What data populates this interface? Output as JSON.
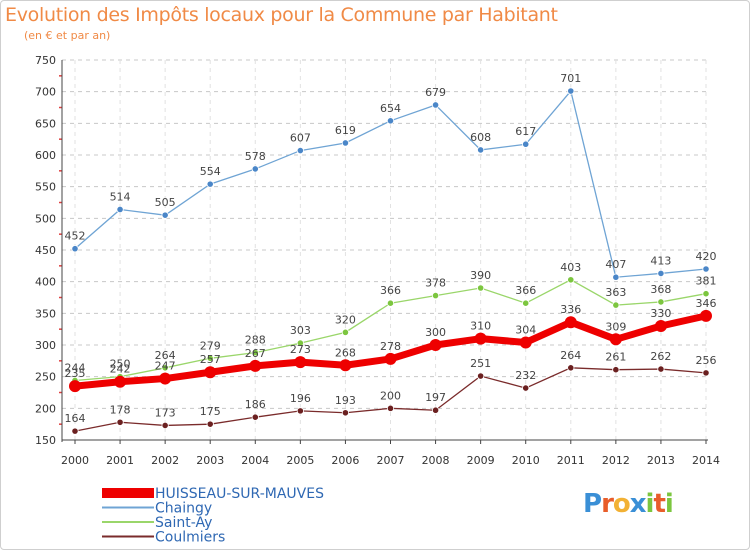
{
  "title": "Evolution des Impôts locaux pour la Commune par Habitant",
  "subtitle": "(en € et par an)",
  "logo": "Proxiti",
  "chart_data": {
    "type": "line",
    "title": "Evolution des Impôts locaux pour la Commune par Habitant",
    "subtitle": "(en € et par an)",
    "x": [
      "2000",
      "2001",
      "2002",
      "2003",
      "2004",
      "2005",
      "2006",
      "2007",
      "2008",
      "2009",
      "2010",
      "2011",
      "2012",
      "2013",
      "2014"
    ],
    "ylim": [
      150,
      750
    ],
    "yticks": [
      150,
      200,
      250,
      300,
      350,
      400,
      450,
      500,
      550,
      600,
      650,
      700,
      750
    ],
    "grid": true,
    "legend_position": "bottom-left",
    "series": [
      {
        "name": "HUISSEAU-SUR-MAUVES",
        "color": "#ee0000",
        "point_color": "#ee0000",
        "emphasis": true,
        "values": [
          235,
          242,
          247,
          257,
          267,
          273,
          268,
          278,
          300,
          310,
          304,
          336,
          309,
          330,
          346
        ]
      },
      {
        "name": "Chaingy",
        "color": "#6fa4d4",
        "point_color": "#4a86c8",
        "values": [
          452,
          514,
          505,
          554,
          578,
          607,
          619,
          654,
          679,
          608,
          617,
          701,
          407,
          413,
          420
        ]
      },
      {
        "name": "Saint-Ay",
        "color": "#9ad66a",
        "point_color": "#7cc63f",
        "values": [
          244,
          250,
          264,
          279,
          288,
          303,
          320,
          366,
          378,
          390,
          366,
          403,
          363,
          368,
          381
        ]
      },
      {
        "name": "Coulmiers",
        "color": "#7a2b2b",
        "point_color": "#6b2020",
        "values": [
          164,
          178,
          173,
          175,
          186,
          196,
          193,
          200,
          197,
          251,
          232,
          264,
          261,
          262,
          256
        ]
      }
    ]
  }
}
